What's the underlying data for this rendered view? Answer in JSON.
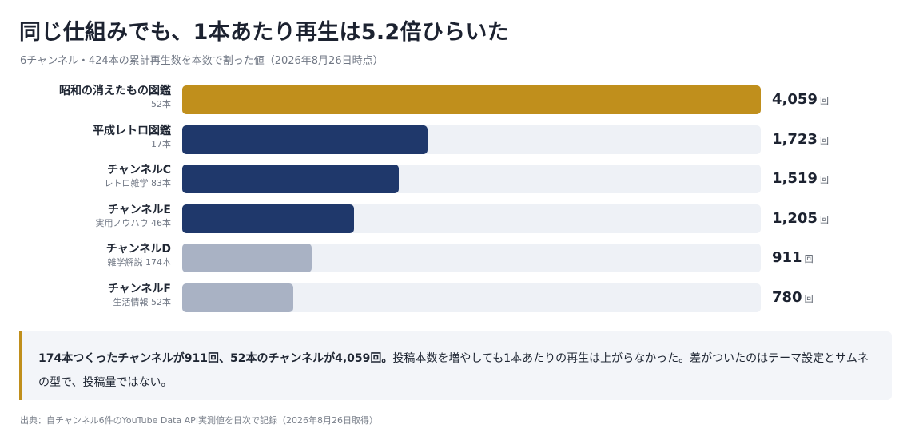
{
  "title": "同じ仕組みでも、1本あたり再生は5.2倍ひらいた",
  "subtitle": "6チャンネル・424本の累計再生数を本数で割った値（2026年8月26日時点）",
  "note": {
    "strong": "174本つくったチャンネルが911回、52本のチャンネルが4,059回。",
    "text": "投稿本数を増やしても1本あたりの再生は上がらなかった。差がついたのはテーマ設定とサムネの型で、投稿量ではない。"
  },
  "source": "出典：自チャンネル6件のYouTube Data API実測値を日次で記録（2026年8月26日取得）",
  "colors": {
    "gold": "#c08f1c",
    "navy": "#1f386b",
    "gray": "#a9b2c4",
    "track": "#eef1f6"
  },
  "chart_data": {
    "type": "bar",
    "orientation": "horizontal",
    "unit": "回",
    "xlim": [
      0,
      4059
    ],
    "grid": false,
    "categories": [
      {
        "name": "昭和の消えたもの図鑑",
        "sub": "52本",
        "value": 4059,
        "display": "4,059",
        "color": "gold"
      },
      {
        "name": "平成レトロ図鑑",
        "sub": "17本",
        "value": 1723,
        "display": "1,723",
        "color": "navy"
      },
      {
        "name": "チャンネルC",
        "sub": "レトロ雑学 83本",
        "value": 1519,
        "display": "1,519",
        "color": "navy"
      },
      {
        "name": "チャンネルE",
        "sub": "実用ノウハウ 46本",
        "value": 1205,
        "display": "1,205",
        "color": "navy"
      },
      {
        "name": "チャンネルD",
        "sub": "雑学解説 174本",
        "value": 911,
        "display": "911",
        "color": "gray"
      },
      {
        "name": "チャンネルF",
        "sub": "生活情報 52本",
        "value": 780,
        "display": "780",
        "color": "gray"
      }
    ]
  }
}
